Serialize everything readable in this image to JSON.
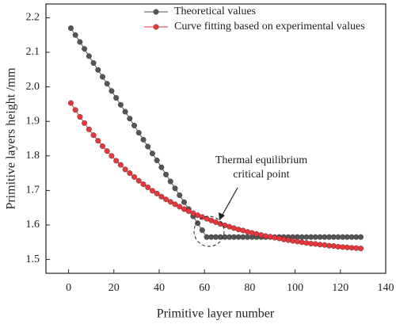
{
  "chart_data": {
    "type": "line",
    "xlabel": "Primitive layer number",
    "ylabel": "Primitive layers height /mm",
    "annotation": [
      "Thermal equilibrium",
      "critical point"
    ],
    "x": [
      1,
      3,
      5,
      7,
      9,
      11,
      13,
      15,
      17,
      19,
      21,
      23,
      25,
      27,
      29,
      31,
      33,
      35,
      37,
      39,
      41,
      43,
      45,
      47,
      49,
      51,
      53,
      55,
      57,
      59,
      61,
      63,
      65,
      67,
      69,
      71,
      73,
      75,
      77,
      79,
      81,
      83,
      85,
      87,
      89,
      91,
      93,
      95,
      97,
      99,
      101,
      103,
      105,
      107,
      109,
      111,
      113,
      115,
      117,
      119,
      121,
      123,
      125,
      127,
      129
    ],
    "series": [
      {
        "name": "Theoretical values",
        "color": "#555555",
        "values": [
          2.17,
          2.15,
          2.13,
          2.11,
          2.089,
          2.069,
          2.049,
          2.029,
          2.009,
          1.988,
          1.968,
          1.948,
          1.928,
          1.908,
          1.888,
          1.867,
          1.847,
          1.827,
          1.807,
          1.787,
          1.767,
          1.746,
          1.726,
          1.706,
          1.686,
          1.666,
          1.646,
          1.625,
          1.605,
          1.585,
          1.565,
          1.565,
          1.565,
          1.565,
          1.565,
          1.565,
          1.565,
          1.565,
          1.565,
          1.565,
          1.565,
          1.565,
          1.565,
          1.565,
          1.565,
          1.565,
          1.565,
          1.565,
          1.565,
          1.565,
          1.565,
          1.565,
          1.565,
          1.565,
          1.565,
          1.565,
          1.565,
          1.565,
          1.565,
          1.565,
          1.565,
          1.565,
          1.565,
          1.565,
          1.565
        ]
      },
      {
        "name": "Curve fitting based on experimental values",
        "color": "#e8363a",
        "values": [
          1.953,
          1.933,
          1.913,
          1.895,
          1.877,
          1.86,
          1.844,
          1.828,
          1.814,
          1.8,
          1.786,
          1.774,
          1.761,
          1.75,
          1.739,
          1.728,
          1.718,
          1.709,
          1.699,
          1.691,
          1.682,
          1.674,
          1.667,
          1.66,
          1.653,
          1.646,
          1.64,
          1.634,
          1.628,
          1.623,
          1.618,
          1.613,
          1.608,
          1.603,
          1.599,
          1.595,
          1.591,
          1.587,
          1.584,
          1.58,
          1.577,
          1.574,
          1.571,
          1.568,
          1.566,
          1.563,
          1.561,
          1.558,
          1.556,
          1.554,
          1.552,
          1.55,
          1.548,
          1.546,
          1.545,
          1.543,
          1.542,
          1.54,
          1.539,
          1.537,
          1.536,
          1.535,
          1.534,
          1.533,
          1.532
        ]
      }
    ],
    "xlim": [
      -10,
      140
    ],
    "xticks": [
      0,
      20,
      40,
      60,
      80,
      100,
      120,
      140
    ],
    "ylim": [
      1.46,
      2.24
    ],
    "yticks": [
      1.5,
      1.6,
      1.7,
      1.8,
      1.9,
      {
        "value": 2,
        "label": "2.0"
      },
      2.1,
      2.2
    ],
    "grid": false,
    "legend": "top"
  }
}
